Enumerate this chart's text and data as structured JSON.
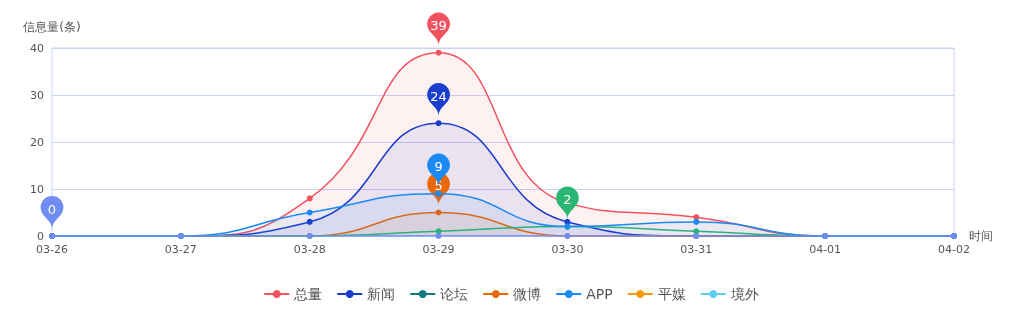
{
  "chart_data": {
    "type": "line",
    "ylabel": "信息量(条)",
    "xlabel": "时间",
    "categories": [
      "03-26",
      "03-27",
      "03-28",
      "03-29",
      "03-30",
      "03-31",
      "04-01",
      "04-02"
    ],
    "series": [
      {
        "name": "总量",
        "type": "area",
        "color": "#f0525f",
        "values": [
          0,
          0,
          8,
          39,
          7,
          4,
          0,
          0
        ],
        "value_labels": [
          null,
          null,
          null,
          "39",
          null,
          null,
          null,
          null
        ]
      },
      {
        "name": "新闻",
        "type": "area",
        "color": "#1a3fcf",
        "values": [
          0,
          0,
          3,
          24,
          3,
          0,
          0,
          0
        ],
        "value_labels": [
          null,
          null,
          null,
          "24",
          null,
          null,
          null,
          null
        ]
      },
      {
        "name": "论坛",
        "color": "#0e7a80",
        "values": [
          null,
          null,
          null,
          null,
          null,
          null,
          null,
          null
        ]
      },
      {
        "name": "微博",
        "type": "area",
        "color": "#e8690a",
        "values": [
          0,
          0,
          0,
          5,
          0,
          0,
          0,
          0
        ],
        "value_labels": [
          null,
          null,
          null,
          "5",
          null,
          null,
          null,
          null
        ]
      },
      {
        "color": "#2bb673",
        "values": [
          0,
          0,
          0,
          1,
          2,
          1,
          0,
          0
        ],
        "value_labels": [
          null,
          null,
          null,
          null,
          "2",
          null,
          null,
          null
        ]
      },
      {
        "name": "APP",
        "type": "area",
        "color": "#1b8af5",
        "values": [
          0,
          0,
          5,
          9,
          2,
          3,
          0,
          0
        ],
        "value_labels": [
          null,
          null,
          null,
          "9",
          null,
          null,
          null,
          null
        ]
      },
      {
        "name": "平媒",
        "color": "#f2990e",
        "values": [
          null,
          null,
          null,
          null,
          null,
          null,
          null,
          null
        ]
      },
      {
        "name": "境外",
        "color": "#5ecef0",
        "values": [
          null,
          null,
          null,
          null,
          null,
          null,
          null,
          null
        ]
      },
      {
        "color": "#a97be6",
        "values": [
          null,
          null,
          null,
          null,
          null,
          null,
          null,
          null
        ]
      },
      {
        "color": "#6f8cf2",
        "values": [
          0,
          0,
          0,
          0,
          0,
          0,
          0,
          0
        ],
        "value_labels": [
          "0",
          null,
          null,
          null,
          null,
          null,
          null,
          null
        ]
      }
    ],
    "ylim": [
      0,
      40
    ],
    "yticks": [
      0,
      10,
      20,
      30,
      40
    ],
    "grid": "y",
    "legend": "bottom",
    "marker": "circle",
    "line_style": "solid"
  }
}
